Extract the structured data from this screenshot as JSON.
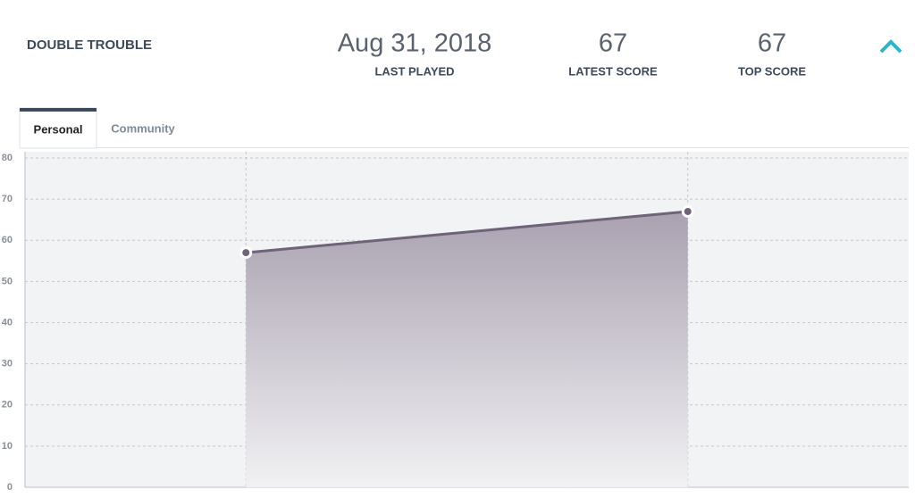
{
  "header": {
    "title": "DOUBLE TROUBLE",
    "stats": [
      {
        "value": "Aug 31, 2018",
        "label": "LAST PLAYED"
      },
      {
        "value": "67",
        "label": "LATEST SCORE"
      },
      {
        "value": "67",
        "label": "TOP SCORE"
      }
    ]
  },
  "tabs": [
    "Personal",
    "Community"
  ],
  "chart_data": {
    "type": "area",
    "categories": [
      null,
      null
    ],
    "values": [
      57,
      67
    ],
    "color": "#6e6378",
    "ylim": [
      0,
      80
    ],
    "yticks": [
      0,
      10,
      20,
      30,
      40,
      50,
      60,
      70,
      80
    ],
    "grid": true
  }
}
